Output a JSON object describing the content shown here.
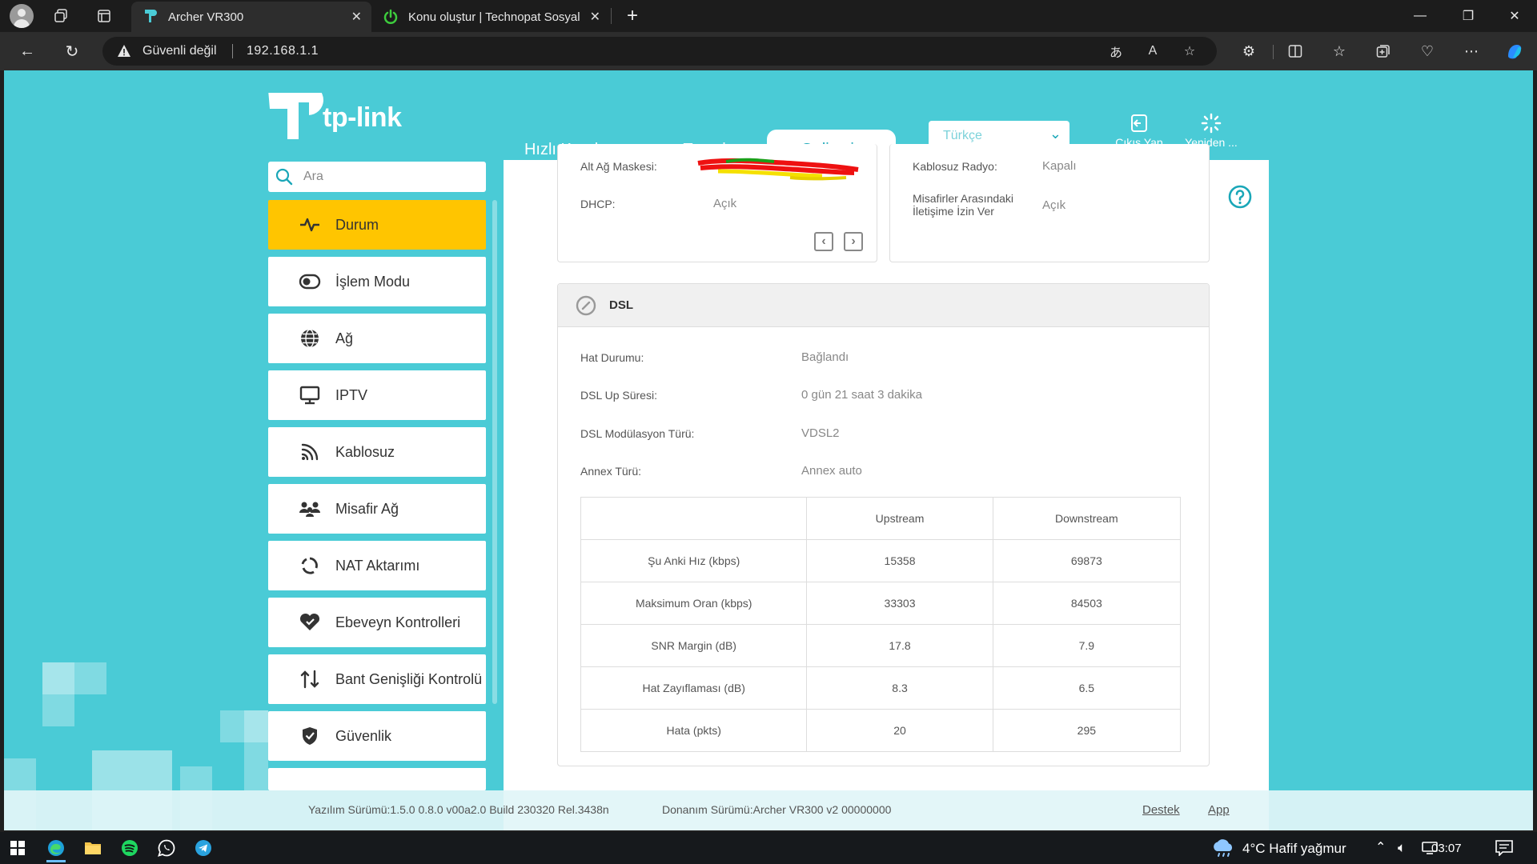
{
  "browser": {
    "tabs": [
      {
        "title": "Archer VR300",
        "active": true
      },
      {
        "title": "Konu oluştur | Technopat Sosyal",
        "active": false
      }
    ],
    "address_bar": {
      "security_label": "Güvenli değil",
      "url": "192.168.1.1"
    },
    "accent_color": "#4acbd6"
  },
  "router": {
    "brand": "tp-link",
    "top_nav": [
      "Hızlı Kurulum",
      "Temel",
      "Gelişmiş"
    ],
    "active_nav": "Gelişmiş",
    "language": "Türkçe",
    "logout_label": "Çıkış Yap",
    "reboot_label": "Yeniden ...",
    "search_placeholder": "Ara",
    "sidebar": [
      {
        "label": "Durum",
        "icon": "pulse-icon",
        "active": true
      },
      {
        "label": "İşlem Modu",
        "icon": "toggle-icon"
      },
      {
        "label": "Ağ",
        "icon": "globe-icon"
      },
      {
        "label": "IPTV",
        "icon": "monitor-icon"
      },
      {
        "label": "Kablosuz",
        "icon": "wifi-icon"
      },
      {
        "label": "Misafir Ağ",
        "icon": "guests-icon"
      },
      {
        "label": "NAT Aktarımı",
        "icon": "nat-icon"
      },
      {
        "label": "Ebeveyn Kontrolleri",
        "icon": "heart-icon"
      },
      {
        "label": "Bant Genişliği Kontrolü",
        "icon": "updown-arrows-icon"
      },
      {
        "label": "Güvenlik",
        "icon": "shield-icon"
      }
    ],
    "lan_panel": {
      "subnet_label": "Alt Ağ Maskesi:",
      "dhcp_label": "DHCP:",
      "dhcp_value": "Açık"
    },
    "guest_panel": {
      "radio_label": "Kablosuz Radyo:",
      "radio_value": "Kapalı",
      "isolation_label_1": "Misafirler Arasındaki",
      "isolation_label_2": "İletişime İzin Ver",
      "isolation_value": "Açık"
    },
    "dsl": {
      "title": "DSL",
      "rows": [
        {
          "label": "Hat Durumu:",
          "value": "Bağlandı"
        },
        {
          "label": "DSL Up Süresi:",
          "value": "0 gün 21 saat 3 dakika"
        },
        {
          "label": "DSL Modülasyon Türü:",
          "value": "VDSL2"
        },
        {
          "label": "Annex Türü:",
          "value": "Annex auto"
        }
      ],
      "table": {
        "headers": [
          "",
          "Upstream",
          "Downstream"
        ],
        "rows": [
          [
            "Şu Anki Hız (kbps)",
            "15358",
            "69873"
          ],
          [
            "Maksimum Oran (kbps)",
            "33303",
            "84503"
          ],
          [
            "SNR Margin (dB)",
            "17.8",
            "7.9"
          ],
          [
            "Hat Zayıflaması (dB)",
            "8.3",
            "6.5"
          ],
          [
            "Hata (pkts)",
            "20",
            "295"
          ]
        ]
      }
    },
    "footer": {
      "software": "Yazılım Sürümü:1.5.0 0.8.0 v00a2.0 Build 230320 Rel.3438n",
      "hardware": "Donanım Sürümü:Archer VR300 v2 00000000",
      "support": "Destek",
      "app": "App"
    }
  },
  "taskbar": {
    "weather": "4°C  Hafif yağmur",
    "time": "03:07"
  }
}
